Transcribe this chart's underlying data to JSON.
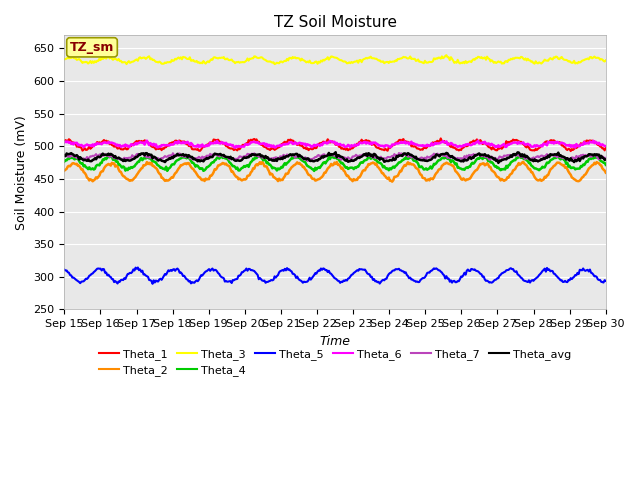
{
  "title": "TZ Soil Moisture",
  "xlabel": "Time",
  "ylabel": "Soil Moisture (mV)",
  "ylim": [
    250,
    670
  ],
  "bg_color": "#e8e8e8",
  "series_order": [
    "Theta_1",
    "Theta_2",
    "Theta_3",
    "Theta_4",
    "Theta_5",
    "Theta_6",
    "Theta_7",
    "Theta_avg"
  ],
  "series": {
    "Theta_1": {
      "color": "#ff0000",
      "base": 502,
      "amp": 7,
      "freq": 14.5,
      "phase": 1.2,
      "lw": 1.5
    },
    "Theta_2": {
      "color": "#ff8c00",
      "base": 461,
      "amp": 13,
      "freq": 14.5,
      "phase": 0.0,
      "lw": 1.8
    },
    "Theta_3": {
      "color": "#ffff00",
      "base": 632,
      "amp": 4,
      "freq": 14.5,
      "phase": 0.5,
      "lw": 1.5
    },
    "Theta_4": {
      "color": "#00cc00",
      "base": 474,
      "amp": 9,
      "freq": 14.5,
      "phase": 0.3,
      "lw": 1.8
    },
    "Theta_5": {
      "color": "#0000ff",
      "base": 302,
      "amp": 10,
      "freq": 14.5,
      "phase": 2.0,
      "lw": 1.5
    },
    "Theta_6": {
      "color": "#ff00ff",
      "base": 503,
      "amp": 3,
      "freq": 14.5,
      "phase": 0.8,
      "lw": 1.8
    },
    "Theta_7": {
      "color": "#bb44bb",
      "base": 484,
      "amp": 3,
      "freq": 14.5,
      "phase": 1.5,
      "lw": 1.5
    },
    "Theta_avg": {
      "color": "#000000",
      "base": 483,
      "amp": 5,
      "freq": 14.5,
      "phase": 0.6,
      "lw": 1.8
    }
  },
  "n_points": 480,
  "x_tick_labels": [
    "Sep 15",
    "Sep 16",
    "Sep 17",
    "Sep 18",
    "Sep 19",
    "Sep 20",
    "Sep 21",
    "Sep 22",
    "Sep 23",
    "Sep 24",
    "Sep 25",
    "Sep 26",
    "Sep 27",
    "Sep 28",
    "Sep 29",
    "Sep 30"
  ],
  "title_fontsize": 11,
  "axis_label_fontsize": 9,
  "tick_label_fontsize": 8,
  "tz_sm_box": {
    "text": "TZ_sm",
    "facecolor": "#ffff99",
    "edgecolor": "#999900",
    "textcolor": "#880000"
  }
}
